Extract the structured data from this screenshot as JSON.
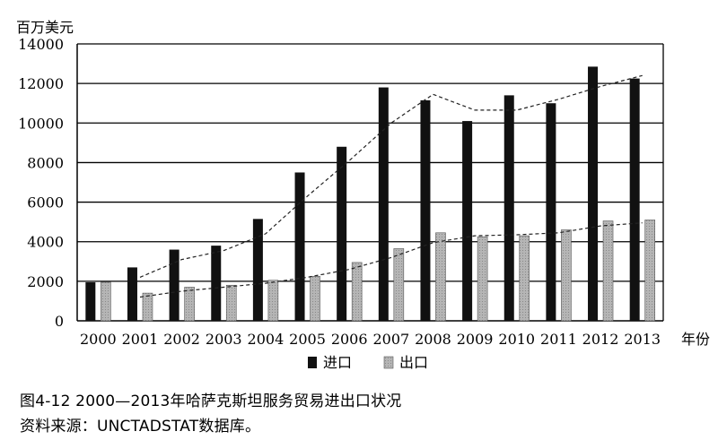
{
  "chart_data": {
    "type": "bar",
    "title": "",
    "ylabel": "百万美元",
    "xlabel": "年份",
    "ylim": [
      0,
      14000
    ],
    "yticks": [
      0,
      2000,
      4000,
      6000,
      8000,
      10000,
      12000,
      14000
    ],
    "categories": [
      "2000",
      "2001",
      "2002",
      "2003",
      "2004",
      "2005",
      "2006",
      "2007",
      "2008",
      "2009",
      "2010",
      "2011",
      "2012",
      "2013"
    ],
    "series": [
      {
        "name": "进口",
        "color": "#111111",
        "values": [
          1950,
          2700,
          3600,
          3800,
          5150,
          7500,
          8800,
          11800,
          11150,
          10100,
          11400,
          11000,
          12850,
          12250
        ]
      },
      {
        "name": "出口",
        "color": "#b5b5b5",
        "values": [
          1950,
          1400,
          1700,
          1800,
          2050,
          2250,
          2950,
          3650,
          4450,
          4250,
          4300,
          4600,
          5050,
          5100
        ]
      }
    ],
    "trendlines": [
      {
        "series": "进口",
        "style": "dashed",
        "values": [
          null,
          2200,
          3100,
          3550,
          4400,
          6300,
          8100,
          10000,
          11450,
          10650,
          10650,
          11200,
          11850,
          12400
        ]
      },
      {
        "series": "出口",
        "style": "dashed",
        "values": [
          null,
          1200,
          1500,
          1700,
          1900,
          2200,
          2600,
          3200,
          3950,
          4300,
          4350,
          4450,
          4800,
          4950
        ]
      }
    ],
    "grid": true,
    "legend": "bottom-center"
  },
  "figure": {
    "caption": "图4-12  2000—2013年哈萨克斯坦服务贸易进出口状况",
    "source": "资料来源：UNCTADSTAT数据库。"
  }
}
